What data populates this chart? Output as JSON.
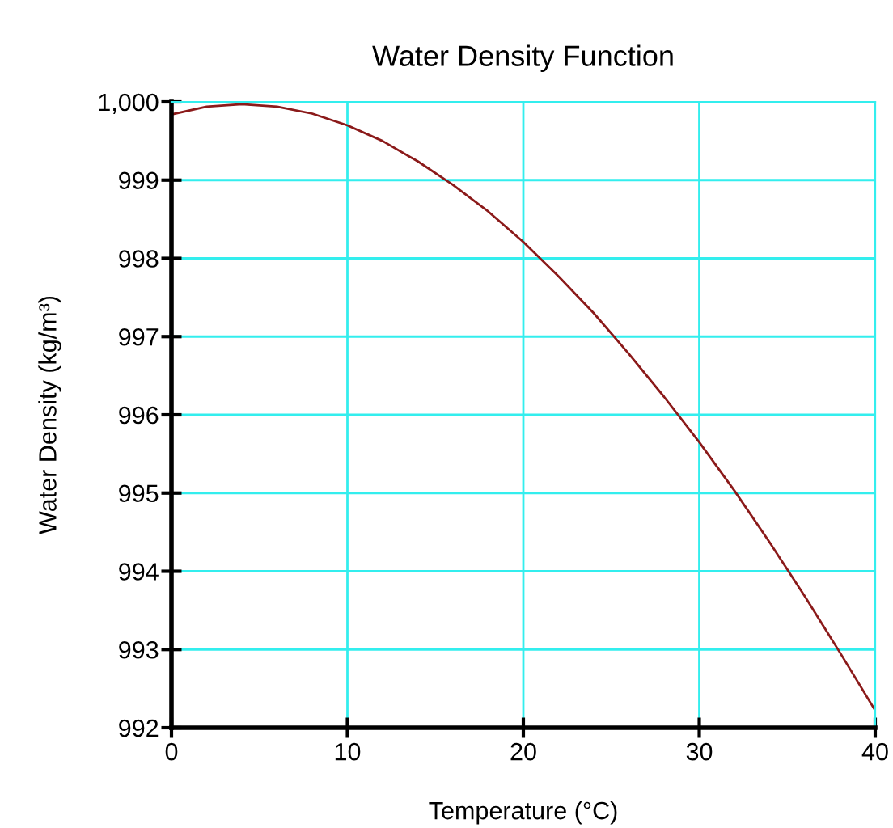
{
  "chart_data": {
    "type": "line",
    "title": "Water Density Function",
    "xlabel": "Temperature (°C)",
    "ylabel": "Water Density (kg/m³)",
    "x": [
      0,
      2,
      4,
      6,
      8,
      10,
      12,
      14,
      16,
      18,
      20,
      22,
      24,
      26,
      28,
      30,
      32,
      34,
      36,
      38,
      40
    ],
    "series": [
      {
        "color": "#8b1a1a",
        "values": [
          999.84,
          999.94,
          999.97,
          999.94,
          999.85,
          999.7,
          999.5,
          999.24,
          998.94,
          998.6,
          998.21,
          997.77,
          997.3,
          996.78,
          996.23,
          995.65,
          995.03,
          994.37,
          993.68,
          992.96,
          992.22
        ]
      }
    ],
    "xlim": [
      0,
      40
    ],
    "xticks": [
      0,
      10,
      20,
      30,
      40
    ],
    "ylim": [
      992,
      1000
    ],
    "yticks": [
      992,
      993,
      994,
      995,
      996,
      997,
      998,
      999,
      {
        "value": 1000,
        "label": "1,000"
      }
    ],
    "grid": true,
    "marker": "none",
    "line_style": "solid"
  }
}
